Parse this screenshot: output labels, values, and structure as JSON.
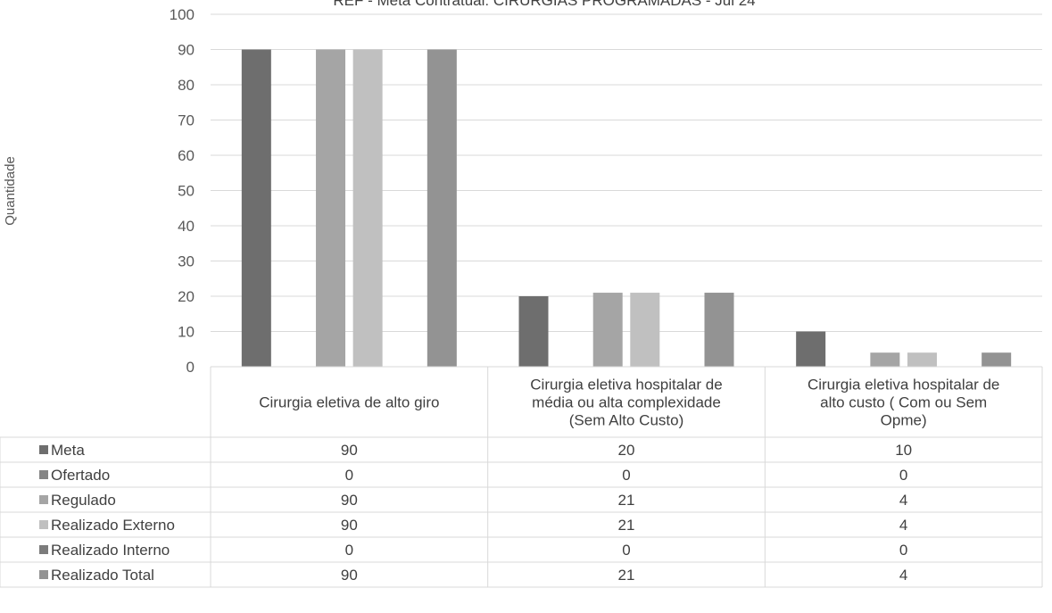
{
  "chart_data": {
    "type": "bar",
    "title": "REF - Meta Contratual: CIRURGIAS PROGRAMADAS - Jul 24",
    "xlabel": "",
    "ylabel": "Quantidade",
    "ylim": [
      0,
      100
    ],
    "yticks": [
      0,
      10,
      20,
      30,
      40,
      50,
      60,
      70,
      80,
      90,
      100
    ],
    "grid": true,
    "legend": "data-table",
    "categories": [
      [
        "Cirurgia eletiva de alto giro"
      ],
      [
        "Cirurgia eletiva hospitalar de",
        "média ou alta complexidade",
        "(Sem Alto Custo)"
      ],
      [
        "Cirurgia eletiva hospitalar de",
        "alto custo ( Com ou Sem",
        "Opme)"
      ]
    ],
    "series": [
      {
        "name": "Meta",
        "values": [
          90,
          20,
          10
        ],
        "color": "#6e6e6e"
      },
      {
        "name": "Ofertado",
        "values": [
          0,
          0,
          0
        ],
        "color": "#858585"
      },
      {
        "name": "Regulado",
        "values": [
          90,
          21,
          4
        ],
        "color": "#a5a5a5"
      },
      {
        "name": "Realizado Externo",
        "values": [
          90,
          21,
          4
        ],
        "color": "#c0c0c0"
      },
      {
        "name": "Realizado Interno",
        "values": [
          0,
          0,
          0
        ],
        "color": "#7c7c7c"
      },
      {
        "name": "Realizado Total",
        "values": [
          90,
          21,
          4
        ],
        "color": "#939393"
      }
    ]
  }
}
